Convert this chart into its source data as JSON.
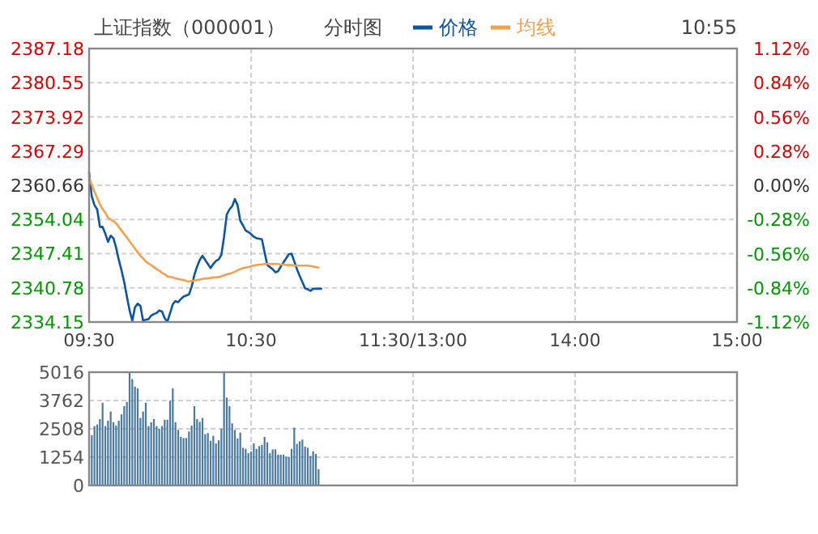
{
  "chart_data": [
    {
      "type": "line",
      "title": "上证指数（000001）",
      "subtitle": "分时图",
      "annotations": [
        "10:55"
      ],
      "legend": "top",
      "grid": true,
      "categories": [
        "09:30",
        null,
        null,
        null,
        null,
        null,
        null,
        null,
        null,
        null,
        null,
        null,
        null,
        null,
        null,
        null,
        null,
        null,
        null,
        null,
        null,
        null,
        null,
        null,
        null,
        null,
        null,
        null,
        null,
        null,
        null,
        null,
        null,
        null,
        null,
        null,
        null,
        null,
        null,
        null,
        null,
        null,
        null,
        null,
        null,
        null,
        null,
        null,
        null,
        null,
        null,
        null,
        null,
        null,
        null,
        null,
        null,
        null,
        null,
        null,
        "10:30",
        null,
        null,
        null,
        null,
        null,
        null,
        null,
        null,
        null,
        null,
        null,
        null,
        null,
        null,
        null,
        null,
        null,
        null,
        null,
        null,
        null,
        null,
        null,
        null,
        null,
        null,
        null,
        null,
        null,
        null,
        null,
        null,
        null,
        null,
        null,
        null,
        null,
        null,
        null,
        null,
        null,
        null,
        null,
        null,
        null,
        null,
        null,
        null,
        null,
        null,
        null,
        null,
        null,
        null,
        null,
        null,
        null,
        null,
        null,
        "11:30/13:00",
        null,
        null,
        null,
        null,
        null,
        null,
        null,
        null,
        null,
        null,
        null,
        null,
        null,
        null,
        null,
        null,
        null,
        null,
        null,
        null,
        null,
        null,
        null,
        null,
        null,
        null,
        null,
        null,
        null,
        null,
        null,
        null,
        null,
        null,
        null,
        null,
        null,
        null,
        null,
        null,
        null,
        null,
        null,
        null,
        null,
        null,
        null,
        null,
        null,
        null,
        null,
        null,
        null,
        null,
        null,
        null,
        null,
        null,
        null,
        "14:00",
        null,
        null,
        null,
        null,
        null,
        null,
        null,
        null,
        null,
        null,
        null,
        null,
        null,
        null,
        null,
        null,
        null,
        null,
        null,
        null,
        null,
        null,
        null,
        null,
        null,
        null,
        null,
        null,
        null,
        null,
        null,
        null,
        null,
        null,
        null,
        null,
        null,
        null,
        null,
        null,
        null,
        null,
        null,
        null,
        null,
        null,
        null,
        null,
        null,
        null,
        null,
        null,
        null,
        null,
        null,
        null,
        null,
        null,
        null,
        "15:00"
      ],
      "ylim": [
        2334.15,
        2387.18
      ],
      "yticks": [
        2334.15,
        2340.78,
        2347.41,
        2354.04,
        2360.66,
        2367.29,
        2373.92,
        2380.55,
        2387.18
      ],
      "y2lim": [
        -1.12,
        1.12
      ],
      "y2ticks": [
        {
          "value": -1.12,
          "label": "-1.12%"
        },
        {
          "value": -0.84,
          "label": "-0.84%"
        },
        {
          "value": -0.56,
          "label": "-0.56%"
        },
        {
          "value": -0.28,
          "label": "-0.28%"
        },
        {
          "value": 0,
          "label": "0.00%"
        },
        {
          "value": 0.28,
          "label": "0.28%"
        },
        {
          "value": 0.56,
          "label": "0.56%"
        },
        {
          "value": 0.84,
          "label": "0.84%"
        },
        {
          "value": 1.12,
          "label": "1.12%"
        }
      ],
      "series": [
        {
          "name": "价格",
          "color": "#0a55a6",
          "values": [
            2363.1,
            2358.5,
            2356.8,
            2356.0,
            2352.6,
            2352.6,
            2351.3,
            2349.7,
            2350.9,
            2350.4,
            2348.6,
            2346.2,
            2344.2,
            2341.9,
            2339.1,
            2336.4,
            2334.4,
            2337.0,
            2337.7,
            2337.3,
            2334.4,
            2334.6,
            2334.7,
            2335.4,
            2335.7,
            2335.9,
            2336.4,
            2336.2,
            2334.9,
            2334.2,
            2335.9,
            2337.6,
            2338.2,
            2338.0,
            2338.6,
            2339.1,
            2339.3,
            2339.5,
            2341.0,
            2343.3,
            2344.9,
            2346.2,
            2347.0,
            2346.2,
            2345.4,
            2344.6,
            2345.4,
            2346.0,
            2346.3,
            2347.2,
            2350.7,
            2355.0,
            2356.0,
            2356.6,
            2358.0,
            2356.8,
            2353.8,
            2352.9,
            2351.9,
            2351.6,
            2351.2,
            2350.7,
            2350.4,
            2350.3,
            2350.2,
            2347.7,
            2345.2,
            2344.8,
            2344.4,
            2343.8,
            2344.0,
            2344.9,
            2345.7,
            2346.5,
            2347.3,
            2347.4,
            2345.9,
            2344.4,
            2343.1,
            2341.9,
            2340.7,
            2340.5,
            2340.2,
            2340.6,
            2340.6,
            2340.6,
            2340.6,
            null,
            null,
            null,
            null,
            null,
            null,
            null,
            null,
            null,
            null,
            null,
            null,
            null,
            null,
            null,
            null,
            null,
            null,
            null,
            null,
            null,
            null,
            null,
            null,
            null,
            null,
            null,
            null,
            null,
            null,
            null,
            null,
            null,
            null,
            null,
            null,
            null,
            null,
            null,
            null,
            null,
            null,
            null,
            null,
            null,
            null,
            null,
            null,
            null,
            null,
            null,
            null,
            null,
            null,
            null,
            null,
            null,
            null,
            null,
            null,
            null,
            null,
            null,
            null,
            null,
            null,
            null,
            null,
            null,
            null,
            null,
            null,
            null,
            null,
            null,
            null,
            null,
            null,
            null,
            null,
            null,
            null,
            null,
            null,
            null,
            null,
            null,
            null,
            null,
            null,
            null,
            null,
            null,
            null,
            null,
            null,
            null,
            null,
            null,
            null,
            null,
            null,
            null,
            null,
            null,
            null,
            null,
            null,
            null,
            null,
            null,
            null,
            null,
            null,
            null,
            null,
            null,
            null,
            null,
            null,
            null,
            null,
            null,
            null,
            null,
            null,
            null,
            null,
            null,
            null,
            null,
            null,
            null,
            null,
            null,
            null,
            null,
            null,
            null,
            null,
            null,
            null,
            null,
            null,
            null,
            null,
            null,
            null,
            null,
            null,
            null,
            null,
            null,
            null
          ]
        },
        {
          "name": "均线",
          "color": "#f5a04a",
          "values": [
            2362.3,
            2360.7,
            2359.4,
            2358.2,
            2357.0,
            2356.1,
            2355.3,
            2354.4,
            2354.0,
            2353.7,
            2353.3,
            2352.6,
            2351.9,
            2351.2,
            2350.5,
            2349.8,
            2349.1,
            2348.4,
            2347.7,
            2347.0,
            2346.5,
            2345.9,
            2345.5,
            2345.2,
            2344.8,
            2344.4,
            2344.1,
            2343.7,
            2343.4,
            2343.0,
            2342.9,
            2342.8,
            2342.6,
            2342.5,
            2342.4,
            2342.3,
            2342.1,
            2342.0,
            2342.1,
            2342.2,
            2342.3,
            2342.4,
            2342.5,
            2342.6,
            2342.6,
            2342.7,
            2342.8,
            2342.8,
            2342.9,
            2343.0,
            2343.2,
            2343.4,
            2343.5,
            2343.7,
            2343.9,
            2344.2,
            2344.4,
            2344.6,
            2344.7,
            2344.8,
            2345.0,
            2345.1,
            2345.2,
            2345.3,
            2345.3,
            2345.4,
            2345.4,
            2345.4,
            2345.4,
            2345.4,
            2345.4,
            2345.3,
            2345.3,
            2345.2,
            2345.2,
            2345.2,
            2345.1,
            2345.1,
            2345.1,
            2345.1,
            2345.1,
            2345.1,
            2345.0,
            2344.9,
            2344.8,
            2344.7,
            null,
            null,
            null,
            null,
            null,
            null,
            null,
            null,
            null,
            null,
            null,
            null,
            null,
            null,
            null,
            null,
            null,
            null,
            null,
            null,
            null,
            null,
            null,
            null,
            null,
            null,
            null,
            null,
            null,
            null,
            null,
            null,
            null,
            null,
            null,
            null,
            null,
            null,
            null,
            null,
            null,
            null,
            null,
            null,
            null,
            null,
            null,
            null,
            null,
            null,
            null,
            null,
            null,
            null,
            null,
            null,
            null,
            null,
            null,
            null,
            null,
            null,
            null,
            null,
            null,
            null,
            null,
            null,
            null,
            null,
            null,
            null,
            null,
            null,
            null,
            null,
            null,
            null,
            null,
            null,
            null,
            null,
            null,
            null,
            null,
            null,
            null,
            null,
            null,
            null,
            null,
            null,
            null,
            null,
            null,
            null,
            null,
            null,
            null,
            null,
            null,
            null,
            null,
            null,
            null,
            null,
            null,
            null,
            null,
            null,
            null,
            null,
            null,
            null,
            null,
            null,
            null,
            null,
            null,
            null,
            null,
            null,
            null,
            null,
            null,
            null,
            null,
            null,
            null,
            null,
            null,
            null,
            null,
            null,
            null,
            null,
            null,
            null,
            null,
            null,
            null,
            null,
            null,
            null,
            null,
            null,
            null,
            null,
            null,
            null,
            null,
            null,
            null,
            null,
            null
          ]
        }
      ]
    },
    {
      "type": "bar",
      "color": "#4a7aa3",
      "grid": true,
      "tick_labels": "y",
      "categories": [
        null,
        null,
        null,
        null,
        null,
        null,
        null,
        null,
        null,
        null,
        null,
        null,
        null,
        null,
        null,
        null,
        null,
        null,
        null,
        null,
        null,
        null,
        null,
        null,
        null,
        null,
        null,
        null,
        null,
        null,
        null,
        null,
        null,
        null,
        null,
        null,
        null,
        null,
        null,
        null,
        null,
        null,
        null,
        null,
        null,
        null,
        null,
        null,
        null,
        null,
        null,
        null,
        null,
        null,
        null,
        null,
        null,
        null,
        null,
        null,
        null,
        null,
        null,
        null,
        null,
        null,
        null,
        null,
        null,
        null,
        null,
        null,
        null,
        null,
        null,
        null,
        null,
        null,
        null,
        null,
        null,
        null,
        null,
        null,
        null,
        null,
        null,
        null,
        null,
        null,
        null,
        null,
        null,
        null,
        null,
        null,
        null,
        null,
        null,
        null,
        null,
        null,
        null,
        null,
        null,
        null,
        null,
        null,
        null,
        null,
        null,
        null,
        null,
        null,
        null,
        null,
        null,
        null,
        null,
        null,
        null,
        null,
        null,
        null,
        null,
        null,
        null,
        null,
        null,
        null,
        null,
        null,
        null,
        null,
        null,
        null,
        null,
        null,
        null,
        null,
        null,
        null,
        null,
        null,
        null,
        null,
        null,
        null,
        null,
        null,
        null,
        null,
        null,
        null,
        null,
        null,
        null,
        null,
        null,
        null,
        null,
        null,
        null,
        null,
        null,
        null,
        null,
        null,
        null,
        null,
        null,
        null,
        null,
        null,
        null,
        null,
        null,
        null,
        null,
        null,
        null,
        null,
        null,
        null,
        null,
        null,
        null,
        null,
        null,
        null,
        null,
        null,
        null,
        null,
        null,
        null,
        null,
        null,
        null,
        null,
        null,
        null,
        null,
        null,
        null,
        null,
        null,
        null,
        null,
        null,
        null,
        null,
        null,
        null,
        null,
        null,
        null,
        null,
        null,
        null,
        null,
        null,
        null,
        null,
        null,
        null,
        null,
        null,
        null,
        null,
        null,
        null,
        null,
        null,
        null,
        null,
        null,
        null,
        null,
        null,
        null
      ],
      "ylim": [
        0,
        5016
      ],
      "yticks": [
        0,
        1254,
        2508,
        3762,
        5016
      ],
      "values": [
        null,
        2220,
        2630,
        2700,
        2940,
        3660,
        2630,
        2870,
        3270,
        2800,
        2650,
        2870,
        3150,
        3510,
        3700,
        5016,
        4710,
        4370,
        4300,
        2990,
        3270,
        3660,
        2630,
        2800,
        2940,
        2630,
        2510,
        2630,
        2910,
        2910,
        3750,
        4300,
        2800,
        2460,
        2150,
        2100,
        2100,
        2390,
        2650,
        3510,
        2940,
        2820,
        2990,
        2270,
        2320,
        1980,
        2200,
        1860,
        2000,
        2510,
        5016,
        3890,
        3510,
        2750,
        2460,
        2080,
        2340,
        1670,
        1620,
        1430,
        1500,
        1860,
        1620,
        1740,
        1790,
        2150,
        1910,
        1430,
        1600,
        1600,
        1360,
        1360,
        1360,
        1270,
        1270,
        1620,
        2560,
        1840,
        1960,
        2030,
        1720,
        1670,
        1310,
        1510,
        1400,
        720,
        null,
        null,
        null,
        null,
        null,
        null,
        null,
        null,
        null,
        null,
        null,
        null,
        null,
        null,
        null,
        null,
        null,
        null,
        null,
        null,
        null,
        null,
        null,
        null,
        null,
        null,
        null,
        null,
        null,
        null,
        null,
        null,
        null,
        null,
        null,
        null,
        null,
        null,
        null,
        null,
        null,
        null,
        null,
        null,
        null,
        null,
        null,
        null,
        null,
        null,
        null,
        null,
        null,
        null,
        null,
        null,
        null,
        null,
        null,
        null,
        null,
        null,
        null,
        null,
        null,
        null,
        null,
        null,
        null,
        null,
        null,
        null,
        null,
        null,
        null,
        null,
        null,
        null,
        null,
        null,
        null,
        null,
        null,
        null,
        null,
        null,
        null,
        null,
        null,
        null,
        null,
        null,
        null,
        null,
        null,
        null,
        null,
        null,
        null,
        null,
        null,
        null,
        null,
        null,
        null,
        null,
        null,
        null,
        null,
        null,
        null,
        null,
        null,
        null,
        null,
        null,
        null,
        null,
        null,
        null,
        null,
        null,
        null,
        null,
        null,
        null,
        null,
        null,
        null,
        null,
        null,
        null,
        null,
        null,
        null,
        null,
        null,
        null,
        null,
        null,
        null,
        null,
        null,
        null,
        null,
        null,
        null,
        null,
        null,
        null,
        null,
        null,
        null,
        null,
        null
      ]
    }
  ]
}
